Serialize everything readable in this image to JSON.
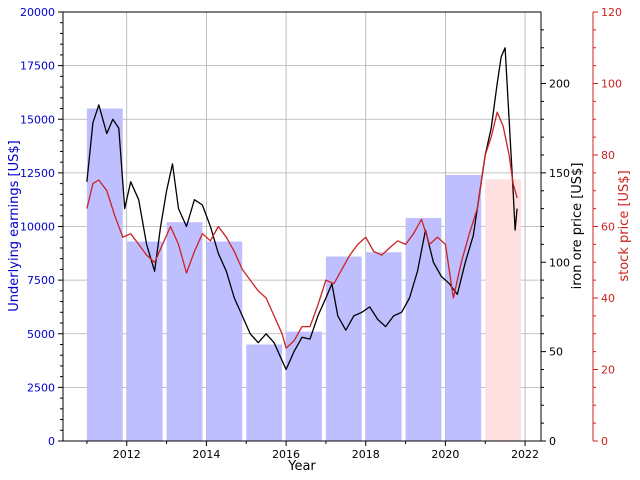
{
  "chart_data": {
    "type": "bar",
    "xlabel": "Year",
    "x_ticks": [
      "2012",
      "2014",
      "2016",
      "2018",
      "2020",
      "2022"
    ],
    "xlim": [
      2010.4,
      2022.4
    ],
    "grid": true,
    "earnings_axis": {
      "label": "Underlying earnings [US$]",
      "ylim": [
        0,
        20000
      ],
      "ticks": [
        "0",
        "2500",
        "5000",
        "7500",
        "10000",
        "12500",
        "15000",
        "17500",
        "20000"
      ],
      "color": "#0000cc"
    },
    "iron_axis": {
      "label": "iron ore price [US$]",
      "ylim": [
        0,
        240
      ],
      "ticks": [
        "0",
        "50",
        "100",
        "150",
        "200"
      ],
      "color": "#000000"
    },
    "stock_axis": {
      "label": "stock price [US$]",
      "ylim": [
        0,
        120
      ],
      "ticks": [
        "0",
        "20",
        "40",
        "60",
        "80",
        "100",
        "120"
      ],
      "color": "#cc2222"
    },
    "bar_color": "#bfbfff",
    "forecast_bar_color": "#ffe0e0",
    "earnings_bars": [
      {
        "year": 2011,
        "value": 15500
      },
      {
        "year": 2012,
        "value": 9300
      },
      {
        "year": 2013,
        "value": 10200
      },
      {
        "year": 2014,
        "value": 9300
      },
      {
        "year": 2015,
        "value": 4500
      },
      {
        "year": 2016,
        "value": 5100
      },
      {
        "year": 2017,
        "value": 8600
      },
      {
        "year": 2018,
        "value": 8800
      },
      {
        "year": 2019,
        "value": 10400
      },
      {
        "year": 2020,
        "value": 12400
      },
      {
        "year": 2021,
        "value": 12200,
        "forecast": true
      }
    ],
    "series": [
      {
        "axis": "iron",
        "color": "#000000",
        "x": [
          2011.0,
          2011.15,
          2011.3,
          2011.5,
          2011.65,
          2011.8,
          2011.95,
          2012.1,
          2012.3,
          2012.5,
          2012.7,
          2012.85,
          2013.0,
          2013.15,
          2013.3,
          2013.5,
          2013.7,
          2013.9,
          2014.1,
          2014.3,
          2014.5,
          2014.7,
          2014.9,
          2015.1,
          2015.3,
          2015.5,
          2015.7,
          2015.9,
          2016.0,
          2016.2,
          2016.4,
          2016.6,
          2016.8,
          2017.0,
          2017.15,
          2017.3,
          2017.5,
          2017.7,
          2017.9,
          2018.1,
          2018.3,
          2018.5,
          2018.7,
          2018.9,
          2019.1,
          2019.3,
          2019.5,
          2019.7,
          2019.9,
          2020.1,
          2020.3,
          2020.5,
          2020.7,
          2020.9,
          2021.0,
          2021.15,
          2021.3,
          2021.4,
          2021.5,
          2021.6,
          2021.7,
          2021.75,
          2021.8
        ],
        "values": [
          145,
          178,
          188,
          172,
          180,
          175,
          130,
          145,
          135,
          110,
          95,
          120,
          140,
          155,
          130,
          120,
          135,
          132,
          120,
          105,
          95,
          80,
          70,
          60,
          55,
          60,
          55,
          45,
          40,
          50,
          58,
          57,
          70,
          80,
          88,
          70,
          62,
          70,
          72,
          75,
          68,
          64,
          70,
          72,
          80,
          95,
          118,
          100,
          92,
          88,
          82,
          100,
          115,
          145,
          160,
          175,
          200,
          215,
          220,
          180,
          140,
          118,
          130
        ]
      },
      {
        "axis": "stock",
        "color": "#cc2222",
        "x": [
          2011.0,
          2011.15,
          2011.3,
          2011.5,
          2011.7,
          2011.9,
          2012.1,
          2012.3,
          2012.5,
          2012.7,
          2012.9,
          2013.1,
          2013.3,
          2013.5,
          2013.7,
          2013.9,
          2014.1,
          2014.3,
          2014.5,
          2014.7,
          2014.9,
          2015.1,
          2015.3,
          2015.5,
          2015.7,
          2015.9,
          2016.0,
          2016.2,
          2016.4,
          2016.6,
          2016.8,
          2017.0,
          2017.2,
          2017.4,
          2017.6,
          2017.8,
          2018.0,
          2018.2,
          2018.4,
          2018.6,
          2018.8,
          2019.0,
          2019.2,
          2019.4,
          2019.6,
          2019.8,
          2020.0,
          2020.2,
          2020.4,
          2020.6,
          2020.8,
          2021.0,
          2021.15,
          2021.3,
          2021.45,
          2021.6,
          2021.7,
          2021.8
        ],
        "values": [
          65,
          72,
          73,
          70,
          63,
          57,
          58,
          55,
          52,
          50,
          55,
          60,
          55,
          47,
          53,
          58,
          56,
          60,
          57,
          53,
          48,
          45,
          42,
          40,
          35,
          30,
          26,
          28,
          32,
          32,
          38,
          45,
          44,
          48,
          52,
          55,
          57,
          53,
          52,
          54,
          56,
          55,
          58,
          62,
          55,
          57,
          55,
          40,
          50,
          58,
          65,
          80,
          85,
          92,
          88,
          80,
          72,
          68
        ]
      }
    ]
  }
}
